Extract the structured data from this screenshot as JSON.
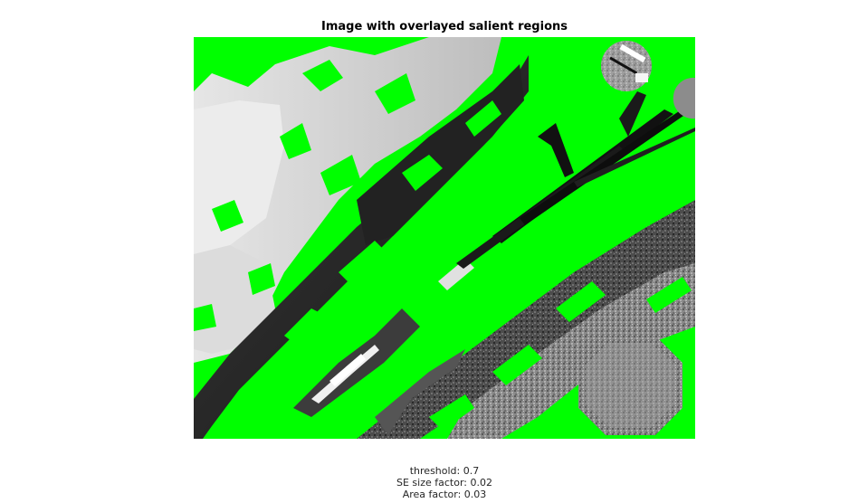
{
  "figure": {
    "title": "Image with overlayed salient regions",
    "overlay_color": "#00ff00",
    "caption": {
      "threshold": "threshold: 0.7",
      "se_size": "SE size factor: 0.02",
      "area": "Area factor: 0.03"
    }
  }
}
